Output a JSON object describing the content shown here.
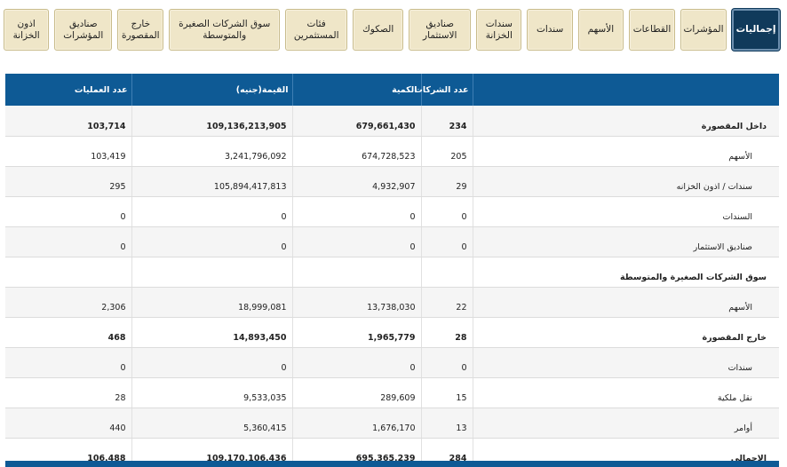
{
  "tabs": [
    {
      "label": "إجماليات",
      "active": true
    },
    {
      "label": "المؤشرات",
      "active": false
    },
    {
      "label": "القطاعات",
      "active": false
    },
    {
      "label": "الأسهم",
      "active": false
    },
    {
      "label": "سندات",
      "active": false
    },
    {
      "label": "سندات الخزانة",
      "active": false
    },
    {
      "label": "صناديق الاستثمار",
      "active": false
    },
    {
      "label": "الصكوك",
      "active": false
    },
    {
      "label": "فئات المستثمرين",
      "active": false
    },
    {
      "label": "سوق الشركات الصغيرة والمتوسطة",
      "active": false
    },
    {
      "label": "خارج المقصورة",
      "active": false
    },
    {
      "label": "صناديق المؤشرات",
      "active": false
    },
    {
      "label": "اذون الخزانة",
      "active": false
    }
  ],
  "table": {
    "headers": {
      "companies": "عدد الشركات",
      "quantity": "الكمية",
      "value": "القيمة(جنيه)",
      "trades": "عدد العمليات"
    },
    "rows": [
      {
        "name": "داخل المقصورة",
        "companies": "234",
        "quantity": "679,661,430",
        "value": "109,136,213,905",
        "trades": "103,714",
        "style": "bold"
      },
      {
        "name": "الأسهم",
        "companies": "205",
        "quantity": "674,728,523",
        "value": "3,241,796,092",
        "trades": "103,419",
        "style": "sub"
      },
      {
        "name": "سندات / اذون الخزانه",
        "companies": "29",
        "quantity": "4,932,907",
        "value": "105,894,417,813",
        "trades": "295",
        "style": "sub"
      },
      {
        "name": "السندات",
        "companies": "0",
        "quantity": "0",
        "value": "0",
        "trades": "0",
        "style": "sub"
      },
      {
        "name": "صناديق الاستثمار",
        "companies": "0",
        "quantity": "0",
        "value": "0",
        "trades": "0",
        "style": "sub"
      },
      {
        "name": "سوق الشركات الصغيرة والمتوسطة",
        "companies": "",
        "quantity": "",
        "value": "",
        "trades": "",
        "style": "bold"
      },
      {
        "name": "الأسهم",
        "companies": "22",
        "quantity": "13,738,030",
        "value": "18,999,081",
        "trades": "2,306",
        "style": "sub"
      },
      {
        "name": "خارج المقصورة",
        "companies": "28",
        "quantity": "1,965,779",
        "value": "14,893,450",
        "trades": "468",
        "style": "bold"
      },
      {
        "name": "سندات",
        "companies": "0",
        "quantity": "0",
        "value": "0",
        "trades": "0",
        "style": "sub"
      },
      {
        "name": "نقل ملكية",
        "companies": "15",
        "quantity": "289,609",
        "value": "9,533,035",
        "trades": "28",
        "style": "sub"
      },
      {
        "name": "أوامر",
        "companies": "13",
        "quantity": "1,676,170",
        "value": "5,360,415",
        "trades": "440",
        "style": "sub"
      },
      {
        "name": "الاجمالى",
        "companies": "284",
        "quantity": "695,365,239",
        "value": "109,170,106,436",
        "trades": "106,488",
        "style": "bold"
      }
    ]
  }
}
